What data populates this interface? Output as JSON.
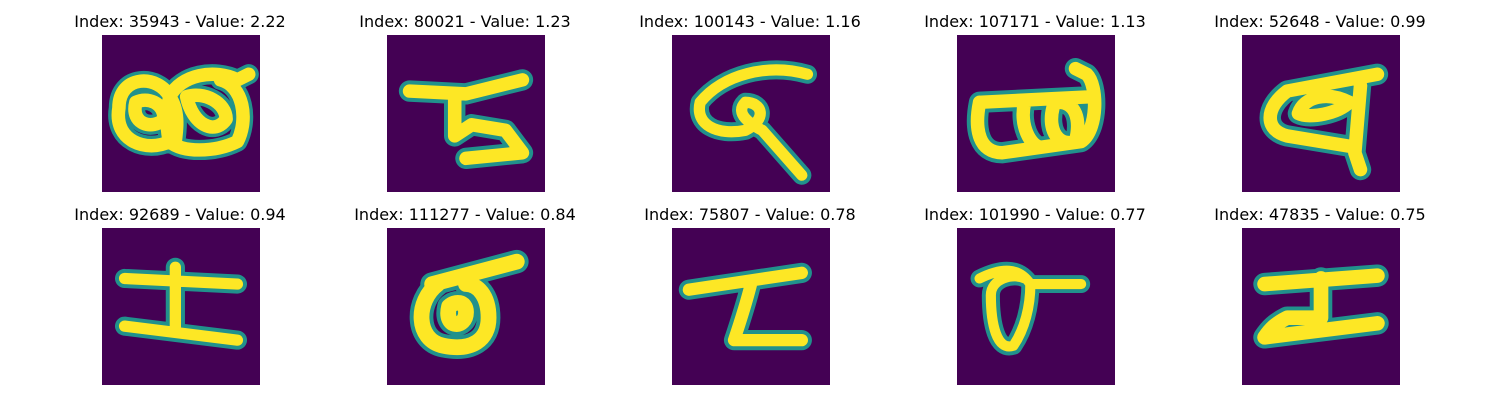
{
  "colors": {
    "background": "#440154",
    "stroke_edge": "#21918c",
    "stroke_mid": "#5ec962",
    "stroke_core": "#fde725"
  },
  "panels": [
    {
      "title": "Index: 35943 - Value: 2.22",
      "glyph": "glyph-1"
    },
    {
      "title": "Index: 80021 - Value: 1.23",
      "glyph": "glyph-2"
    },
    {
      "title": "Index: 100143 - Value: 1.16",
      "glyph": "glyph-3"
    },
    {
      "title": "Index: 107171 - Value: 1.13",
      "glyph": "glyph-4"
    },
    {
      "title": "Index: 52648 - Value: 0.99",
      "glyph": "glyph-5"
    },
    {
      "title": "Index: 92689 - Value: 0.94",
      "glyph": "glyph-6"
    },
    {
      "title": "Index: 111277 - Value: 0.84",
      "glyph": "glyph-7"
    },
    {
      "title": "Index: 75807 - Value: 0.78",
      "glyph": "glyph-8"
    },
    {
      "title": "Index: 101990 - Value: 0.77",
      "glyph": "glyph-9"
    },
    {
      "title": "Index: 47835 - Value: 0.75",
      "glyph": "glyph-10"
    }
  ]
}
